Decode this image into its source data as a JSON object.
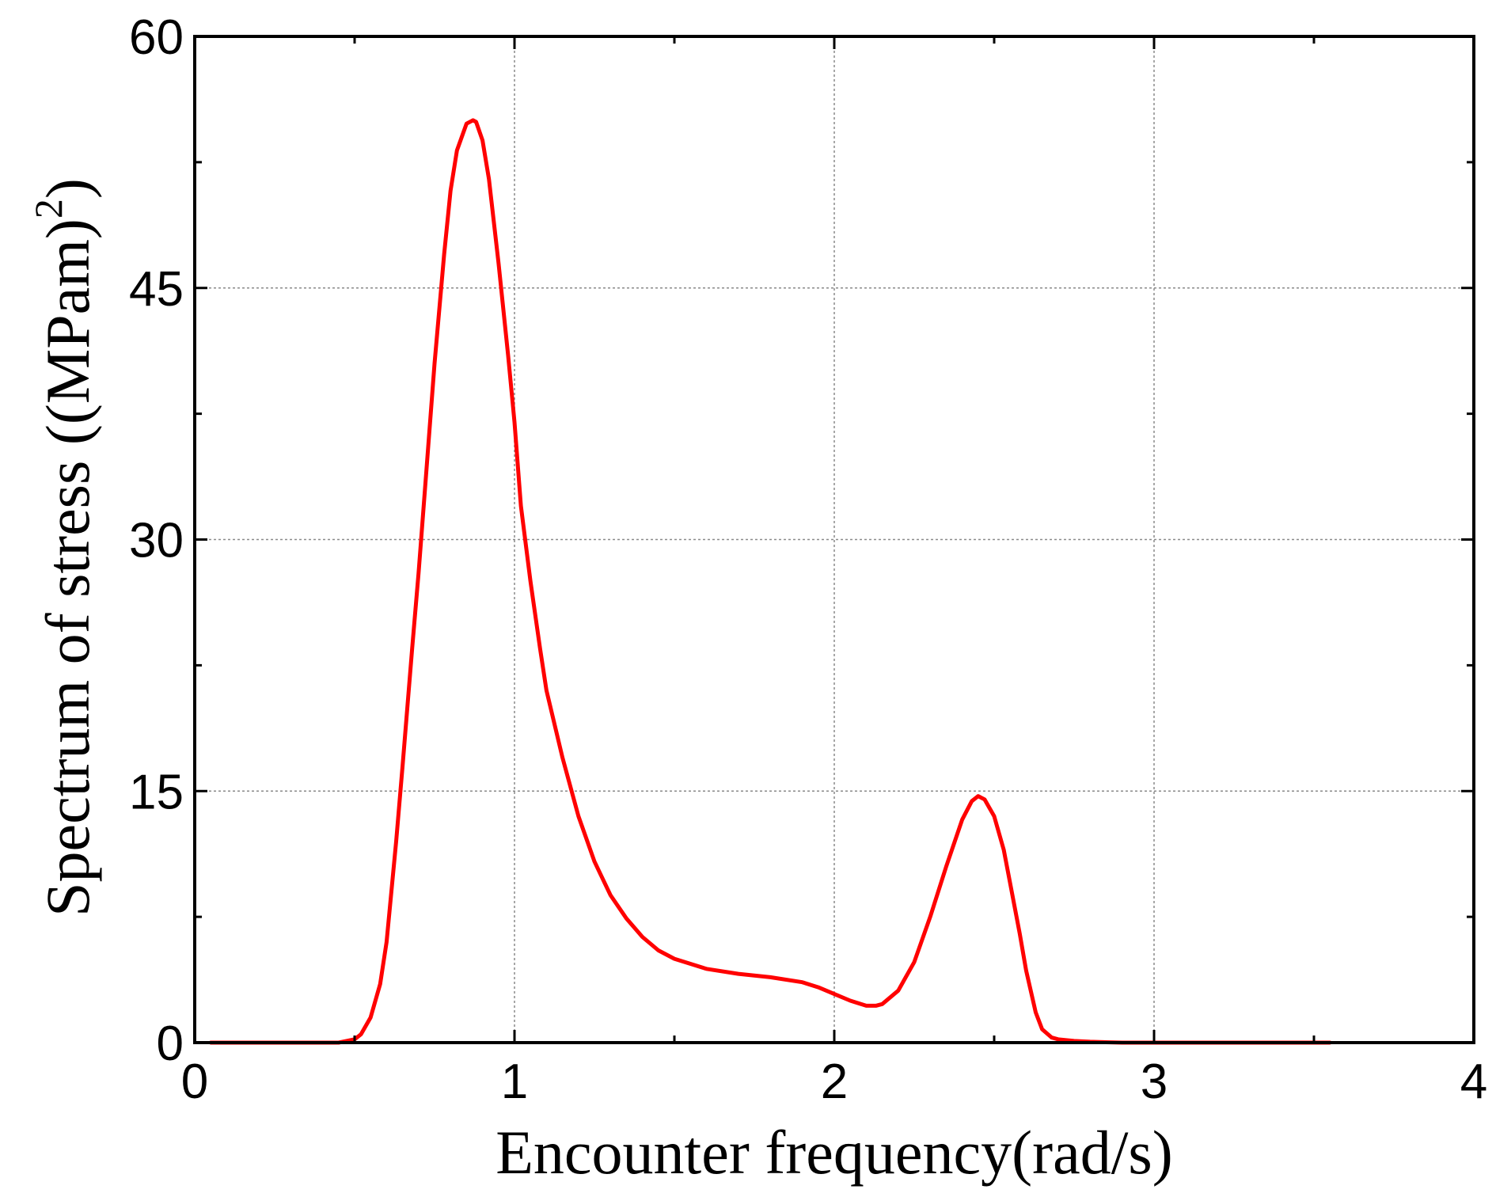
{
  "chart_data": {
    "type": "line",
    "title": "",
    "xlabel": "Encounter frequency(rad/s)",
    "ylabel": "Spectrum of stress ((MPam)",
    "ylabel_superscript": "2",
    "ylabel_close": ")",
    "xlim": [
      0,
      4
    ],
    "ylim": [
      0,
      60
    ],
    "xticks": [
      0,
      1,
      2,
      3,
      4
    ],
    "xtick_labels": [
      "0",
      "1",
      "2",
      "3",
      "4"
    ],
    "yticks": [
      0,
      15,
      30,
      45,
      60
    ],
    "ytick_labels": [
      "0",
      "15",
      "30",
      "45",
      "60"
    ],
    "grid": true,
    "legend": "none",
    "series": [
      {
        "color": "#ff0000",
        "x": [
          0.05,
          0.3,
          0.45,
          0.5,
          0.52,
          0.55,
          0.58,
          0.6,
          0.63,
          0.65,
          0.68,
          0.7,
          0.72,
          0.75,
          0.78,
          0.8,
          0.82,
          0.85,
          0.87,
          0.88,
          0.9,
          0.92,
          0.95,
          0.98,
          1.0,
          1.02,
          1.05,
          1.08,
          1.1,
          1.15,
          1.2,
          1.25,
          1.3,
          1.35,
          1.4,
          1.45,
          1.5,
          1.6,
          1.7,
          1.8,
          1.9,
          1.95,
          2.0,
          2.05,
          2.1,
          2.13,
          2.15,
          2.2,
          2.25,
          2.3,
          2.35,
          2.4,
          2.43,
          2.45,
          2.47,
          2.5,
          2.53,
          2.55,
          2.58,
          2.6,
          2.63,
          2.65,
          2.68,
          2.7,
          2.75,
          2.8,
          2.9,
          3.0,
          3.2,
          3.4,
          3.55
        ],
        "y": [
          0,
          0,
          0,
          0.2,
          0.5,
          1.5,
          3.5,
          6.0,
          12.0,
          16.5,
          23.5,
          28.0,
          33.0,
          40.5,
          47.0,
          50.8,
          53.2,
          54.8,
          55.0,
          54.9,
          53.8,
          51.5,
          46.5,
          41.0,
          37.0,
          32.0,
          27.5,
          23.5,
          21.0,
          17.0,
          13.5,
          10.8,
          8.8,
          7.4,
          6.3,
          5.5,
          5.0,
          4.4,
          4.1,
          3.9,
          3.6,
          3.3,
          2.9,
          2.5,
          2.2,
          2.2,
          2.3,
          3.1,
          4.8,
          7.5,
          10.5,
          13.3,
          14.4,
          14.7,
          14.5,
          13.5,
          11.5,
          9.5,
          6.5,
          4.3,
          1.8,
          0.8,
          0.3,
          0.2,
          0.1,
          0.05,
          0,
          0,
          0,
          0,
          0
        ]
      }
    ]
  }
}
